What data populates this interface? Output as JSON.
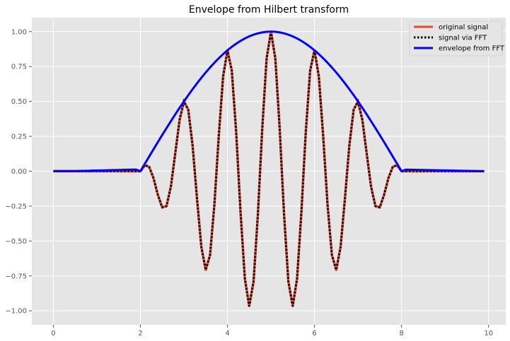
{
  "chart_data": {
    "type": "line",
    "title": "Envelope from Hilbert transform",
    "xlabel": "",
    "ylabel": "",
    "xlim": [
      -0.495,
      10.395
    ],
    "ylim": [
      -1.1,
      1.1
    ],
    "grid": true,
    "legend_position": "top-right",
    "x_ticks": [
      0,
      2,
      4,
      6,
      8,
      10
    ],
    "x_tick_labels": [
      "0",
      "2",
      "4",
      "6",
      "8",
      "10"
    ],
    "y_ticks": [
      -1.0,
      -0.75,
      -0.5,
      -0.25,
      0.0,
      0.25,
      0.5,
      0.75,
      1.0
    ],
    "y_tick_labels": [
      "−1.00",
      "−0.75",
      "−0.50",
      "−0.25",
      "0.00",
      "0.25",
      "0.50",
      "0.75",
      "1.00"
    ],
    "x_sampling": {
      "start": 0,
      "stop": 9.9,
      "step": 0.1
    },
    "signal_model": {
      "description": "window sin(pi*(t-2)/6) for 2<=t<=8, else 0; signal = window*cos(2*pi*t)"
    },
    "series": [
      {
        "name": "original signal",
        "color": "#E24A33",
        "style": "solid"
      },
      {
        "name": "signal via FFT",
        "color": "#000000",
        "style": "dotted"
      },
      {
        "name": "envelope from FFT",
        "color": "#0000FF",
        "style": "solid"
      }
    ]
  }
}
